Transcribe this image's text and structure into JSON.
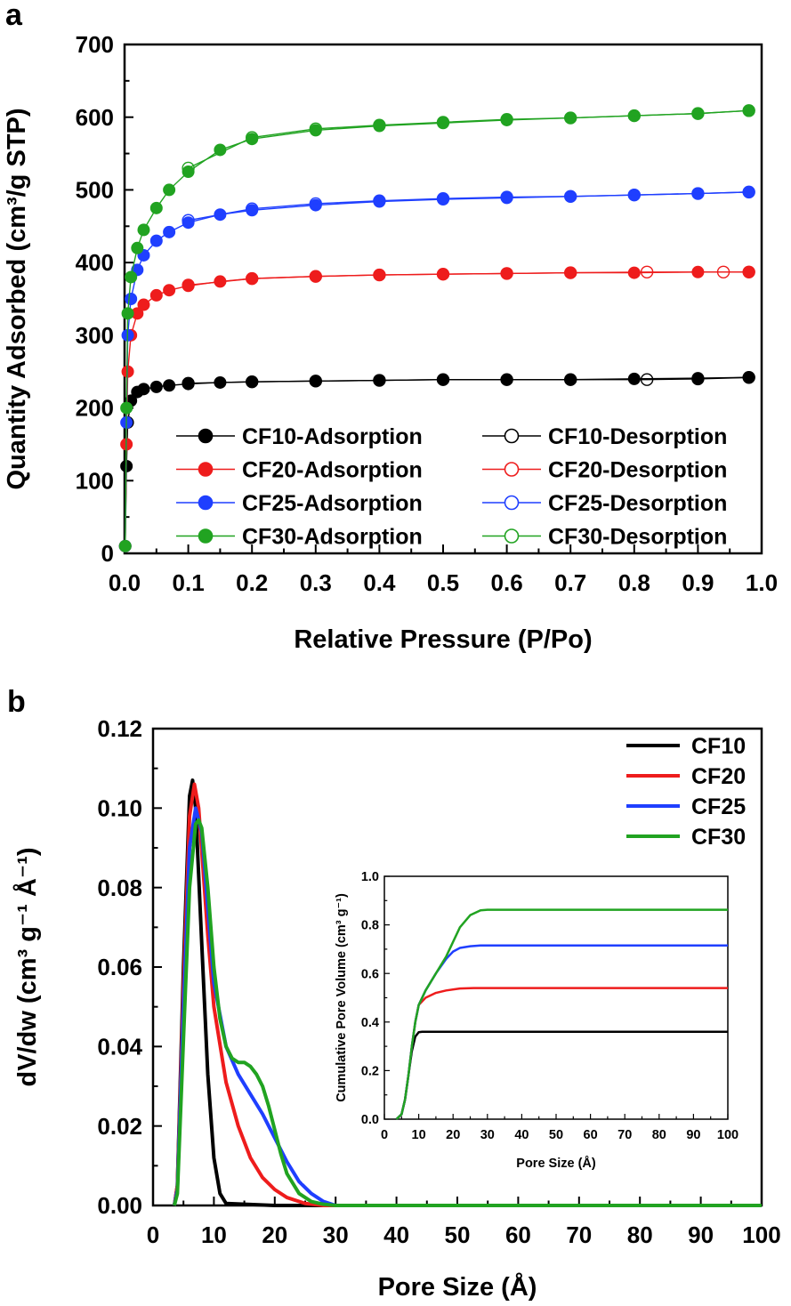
{
  "chart_data": [
    {
      "panel": "a",
      "type": "scatter",
      "xlabel": "Relative Pressure (P/Po)",
      "ylabel": "Quantity Adsorbed (cm³/g STP)",
      "xlim": [
        0.0,
        1.0
      ],
      "ylim": [
        0,
        700
      ],
      "xticks": [
        "0.0",
        "0.1",
        "0.2",
        "0.3",
        "0.4",
        "0.5",
        "0.6",
        "0.7",
        "0.8",
        "0.9",
        "1.0"
      ],
      "yticks": [
        "0",
        "100",
        "200",
        "300",
        "400",
        "500",
        "600",
        "700"
      ],
      "grid": false,
      "legend_position": "bottom-right",
      "legend": [
        "CF10-Adsorption",
        "CF10-Desorption",
        "CF20-Adsorption",
        "CF20-Desorption",
        "CF25-Adsorption",
        "CF25-Desorption",
        "CF30-Adsorption",
        "CF30-Desorption"
      ],
      "series": [
        {
          "name": "CF10-Adsorption",
          "color": "#000000",
          "marker": "filled",
          "x": [
            0.001,
            0.003,
            0.005,
            0.01,
            0.02,
            0.03,
            0.05,
            0.07,
            0.1,
            0.15,
            0.2,
            0.3,
            0.4,
            0.5,
            0.6,
            0.7,
            0.8,
            0.9,
            0.98
          ],
          "y": [
            10,
            120,
            180,
            210,
            222,
            226,
            229,
            231,
            233,
            235,
            236,
            237,
            238,
            239,
            239,
            239,
            240,
            241,
            242
          ]
        },
        {
          "name": "CF10-Desorption",
          "color": "#000000",
          "marker": "open",
          "x": [
            0.98,
            0.9,
            0.82,
            0.7,
            0.6,
            0.5,
            0.4,
            0.3,
            0.2,
            0.1
          ],
          "y": [
            242,
            240,
            239,
            239,
            239,
            239,
            238,
            237,
            236,
            234
          ]
        },
        {
          "name": "CF20-Adsorption",
          "color": "#ee1c1c",
          "marker": "filled",
          "x": [
            0.001,
            0.003,
            0.005,
            0.01,
            0.02,
            0.03,
            0.05,
            0.07,
            0.1,
            0.15,
            0.2,
            0.3,
            0.4,
            0.5,
            0.6,
            0.7,
            0.8,
            0.9,
            0.98
          ],
          "y": [
            10,
            150,
            250,
            300,
            330,
            342,
            355,
            362,
            368,
            374,
            378,
            381,
            383,
            384,
            385,
            386,
            386,
            387,
            387
          ]
        },
        {
          "name": "CF20-Desorption",
          "color": "#ee1c1c",
          "marker": "open",
          "x": [
            0.98,
            0.94,
            0.82,
            0.7,
            0.6,
            0.5,
            0.4,
            0.3,
            0.2,
            0.1
          ],
          "y": [
            387,
            387,
            387,
            386,
            385,
            384,
            383,
            381,
            378,
            369
          ]
        },
        {
          "name": "CF25-Adsorption",
          "color": "#1f3fff",
          "marker": "filled",
          "x": [
            0.001,
            0.003,
            0.005,
            0.01,
            0.02,
            0.03,
            0.05,
            0.07,
            0.1,
            0.15,
            0.2,
            0.3,
            0.4,
            0.5,
            0.6,
            0.7,
            0.8,
            0.9,
            0.98
          ],
          "y": [
            10,
            180,
            300,
            350,
            390,
            410,
            430,
            442,
            455,
            466,
            472,
            479,
            484,
            487,
            489,
            491,
            493,
            495,
            497
          ]
        },
        {
          "name": "CF25-Desorption",
          "color": "#1f3fff",
          "marker": "open",
          "x": [
            0.98,
            0.9,
            0.8,
            0.7,
            0.6,
            0.5,
            0.4,
            0.3,
            0.2,
            0.1
          ],
          "y": [
            497,
            495,
            493,
            491,
            490,
            488,
            485,
            481,
            474,
            458
          ]
        },
        {
          "name": "CF30-Adsorption",
          "color": "#21a321",
          "marker": "filled",
          "x": [
            0.001,
            0.003,
            0.005,
            0.01,
            0.02,
            0.03,
            0.05,
            0.07,
            0.1,
            0.15,
            0.2,
            0.3,
            0.4,
            0.5,
            0.6,
            0.7,
            0.8,
            0.9,
            0.98
          ],
          "y": [
            10,
            200,
            330,
            380,
            420,
            445,
            475,
            500,
            525,
            555,
            570,
            582,
            588,
            592,
            596,
            599,
            602,
            605,
            609
          ]
        },
        {
          "name": "CF30-Desorption",
          "color": "#21a321",
          "marker": "open",
          "x": [
            0.98,
            0.9,
            0.8,
            0.7,
            0.6,
            0.5,
            0.4,
            0.3,
            0.2,
            0.1
          ],
          "y": [
            609,
            605,
            602,
            599,
            597,
            593,
            589,
            584,
            572,
            530
          ]
        }
      ]
    },
    {
      "panel": "b",
      "type": "line",
      "xlabel": "Pore Size (Å)",
      "ylabel": "dV/dw (cm³ g⁻¹ Å⁻¹)",
      "xlim": [
        0,
        100
      ],
      "ylim": [
        0.0,
        0.12
      ],
      "xticks": [
        "0",
        "10",
        "20",
        "30",
        "40",
        "50",
        "60",
        "70",
        "80",
        "90",
        "100"
      ],
      "yticks": [
        "0.00",
        "0.02",
        "0.04",
        "0.06",
        "0.08",
        "0.10",
        "0.12"
      ],
      "grid": false,
      "legend_position": "top-right",
      "legend": [
        "CF10",
        "CF20",
        "CF25",
        "CF30"
      ],
      "series": [
        {
          "name": "CF10",
          "color": "#000000",
          "x": [
            3.5,
            4,
            5,
            6,
            6.5,
            7,
            8,
            9,
            10,
            11,
            12,
            20,
            30,
            100
          ],
          "y": [
            0,
            0.005,
            0.06,
            0.103,
            0.107,
            0.1,
            0.066,
            0.033,
            0.012,
            0.003,
            0.0005,
            0,
            0,
            0
          ]
        },
        {
          "name": "CF20",
          "color": "#ee1c1c",
          "x": [
            3.5,
            4,
            5,
            6,
            6.8,
            7.5,
            9,
            10,
            12,
            14,
            16,
            18,
            20,
            22,
            25,
            28,
            30,
            100
          ],
          "y": [
            0,
            0.005,
            0.055,
            0.098,
            0.106,
            0.1,
            0.068,
            0.05,
            0.031,
            0.02,
            0.012,
            0.007,
            0.004,
            0.002,
            0.0005,
            0,
            0,
            0
          ]
        },
        {
          "name": "CF25",
          "color": "#1f3fff",
          "x": [
            3.5,
            4,
            5,
            6,
            7,
            8,
            9,
            10,
            12,
            14,
            16,
            18,
            20,
            22,
            24,
            26,
            28,
            30,
            100
          ],
          "y": [
            0,
            0.004,
            0.05,
            0.09,
            0.1,
            0.094,
            0.075,
            0.056,
            0.04,
            0.033,
            0.028,
            0.023,
            0.017,
            0.011,
            0.006,
            0.003,
            0.001,
            0,
            0
          ]
        },
        {
          "name": "CF30",
          "color": "#21a321",
          "x": [
            3.5,
            4,
            5,
            6,
            7,
            7.5,
            8,
            9,
            10,
            11,
            12,
            13,
            14,
            15,
            16,
            17,
            18,
            19,
            20,
            21,
            22,
            24,
            26,
            28,
            30,
            100
          ],
          "y": [
            0,
            0.003,
            0.042,
            0.08,
            0.096,
            0.097,
            0.095,
            0.08,
            0.06,
            0.047,
            0.04,
            0.037,
            0.036,
            0.036,
            0.035,
            0.033,
            0.03,
            0.025,
            0.019,
            0.013,
            0.008,
            0.003,
            0.001,
            0.0003,
            0,
            0
          ]
        }
      ]
    },
    {
      "panel": "b-inset",
      "type": "line",
      "xlabel": "Pore Size (Å)",
      "ylabel": "Cumulative Pore Volume (cm³ g⁻¹)",
      "xlim": [
        0,
        100
      ],
      "ylim": [
        0.0,
        1.0
      ],
      "xticks": [
        "0",
        "10",
        "20",
        "30",
        "40",
        "50",
        "60",
        "70",
        "80",
        "90",
        "100"
      ],
      "yticks": [
        "0.0",
        "0.2",
        "0.4",
        "0.6",
        "0.8",
        "1.0"
      ],
      "grid": false,
      "series": [
        {
          "name": "CF10",
          "color": "#000000",
          "x": [
            3.5,
            5,
            6,
            7,
            8,
            9,
            10,
            11,
            100
          ],
          "y": [
            0,
            0.02,
            0.08,
            0.18,
            0.28,
            0.34,
            0.358,
            0.36,
            0.36
          ]
        },
        {
          "name": "CF20",
          "color": "#ee1c1c",
          "x": [
            3.5,
            5,
            6,
            7,
            8,
            9,
            10,
            12,
            15,
            18,
            22,
            26,
            100
          ],
          "y": [
            0,
            0.02,
            0.08,
            0.18,
            0.3,
            0.4,
            0.47,
            0.5,
            0.52,
            0.53,
            0.538,
            0.54,
            0.54
          ]
        },
        {
          "name": "CF25",
          "color": "#1f3fff",
          "x": [
            3.5,
            5,
            6,
            7,
            8,
            9,
            10,
            12,
            15,
            18,
            20,
            22,
            25,
            28,
            100
          ],
          "y": [
            0,
            0.02,
            0.08,
            0.18,
            0.3,
            0.4,
            0.47,
            0.53,
            0.6,
            0.66,
            0.69,
            0.705,
            0.712,
            0.715,
            0.715
          ]
        },
        {
          "name": "CF30",
          "color": "#21a321",
          "x": [
            3.5,
            5,
            6,
            7,
            8,
            9,
            10,
            12,
            15,
            18,
            20,
            22,
            25,
            28,
            30,
            100
          ],
          "y": [
            0,
            0.02,
            0.08,
            0.18,
            0.3,
            0.4,
            0.47,
            0.53,
            0.6,
            0.67,
            0.73,
            0.79,
            0.84,
            0.86,
            0.862,
            0.862
          ]
        }
      ]
    }
  ],
  "panel_labels": {
    "a": "a",
    "b": "b"
  }
}
